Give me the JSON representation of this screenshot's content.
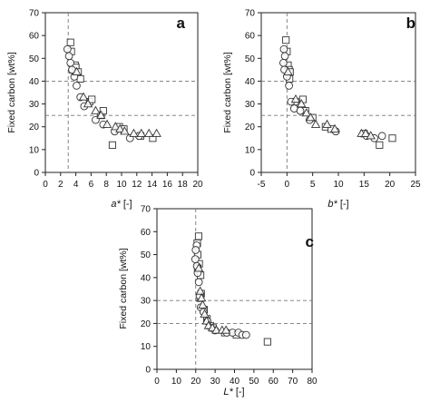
{
  "chart_data": [
    {
      "type": "scatter",
      "panel_label": "a",
      "xlabel_main": "a*",
      "xlabel_unit": " [-]",
      "ylabel": "Fixed carbon [wt%]",
      "xlim": [
        0,
        20
      ],
      "ylim": [
        0,
        70
      ],
      "xticks": [
        0,
        2,
        4,
        6,
        8,
        10,
        12,
        14,
        16,
        18,
        20
      ],
      "yticks": [
        0,
        10,
        20,
        30,
        40,
        50,
        60,
        70
      ],
      "vlines": [
        3
      ],
      "hlines": [
        25,
        40
      ],
      "series": [
        {
          "marker": "square",
          "points": [
            [
              3.3,
              57
            ],
            [
              3.4,
              53
            ],
            [
              3.6,
              45
            ],
            [
              3.9,
              47
            ],
            [
              4,
              46
            ],
            [
              4.3,
              44
            ],
            [
              4.6,
              41
            ],
            [
              5.8,
              31
            ],
            [
              6.1,
              32
            ],
            [
              7.3,
              25
            ],
            [
              7.6,
              27
            ],
            [
              8.8,
              12
            ],
            [
              9.7,
              20
            ],
            [
              10.3,
              19
            ],
            [
              12.5,
              16
            ],
            [
              14.1,
              15
            ]
          ]
        },
        {
          "marker": "circle",
          "points": [
            [
              2.9,
              54
            ],
            [
              3.1,
              51
            ],
            [
              3.3,
              48
            ],
            [
              3.5,
              45
            ],
            [
              3.8,
              42
            ],
            [
              4.1,
              38
            ],
            [
              4.6,
              33
            ],
            [
              5.1,
              29
            ],
            [
              6.6,
              23
            ],
            [
              7.6,
              21
            ],
            [
              9.1,
              18
            ],
            [
              11.1,
              15
            ],
            [
              12.3,
              16
            ]
          ]
        },
        {
          "marker": "triangle",
          "points": [
            [
              4.1,
              44
            ],
            [
              5,
              33
            ],
            [
              5.6,
              30
            ],
            [
              6.6,
              27
            ],
            [
              7.3,
              25
            ],
            [
              8.1,
              21
            ],
            [
              9.2,
              20
            ],
            [
              9.8,
              19
            ],
            [
              10.4,
              18
            ],
            [
              11.6,
              17
            ],
            [
              12.6,
              17
            ],
            [
              13.6,
              17
            ],
            [
              14.6,
              17
            ]
          ]
        }
      ]
    },
    {
      "type": "scatter",
      "panel_label": "b",
      "xlabel_main": "b*",
      "xlabel_unit": " [-]",
      "ylabel": "Fixed carbon [wt%]",
      "xlim": [
        -5,
        25
      ],
      "ylim": [
        0,
        70
      ],
      "xticks": [
        -5,
        0,
        5,
        10,
        15,
        20,
        25
      ],
      "yticks": [
        0,
        10,
        20,
        30,
        40,
        50,
        60,
        70
      ],
      "vlines": [
        0
      ],
      "hlines": [
        25,
        40
      ],
      "series": [
        {
          "marker": "square",
          "points": [
            [
              -0.2,
              58
            ],
            [
              0,
              53
            ],
            [
              0.2,
              47
            ],
            [
              0.4,
              45
            ],
            [
              0.6,
              44
            ],
            [
              0.5,
              41
            ],
            [
              1.6,
              31
            ],
            [
              3.1,
              32
            ],
            [
              3.6,
              27
            ],
            [
              5,
              24
            ],
            [
              7.5,
              20
            ],
            [
              8.6,
              19
            ],
            [
              15,
              17
            ],
            [
              18,
              12
            ],
            [
              20.5,
              15
            ]
          ]
        },
        {
          "marker": "circle",
          "points": [
            [
              -0.6,
              54
            ],
            [
              -0.4,
              51
            ],
            [
              -0.7,
              48
            ],
            [
              -0.5,
              45
            ],
            [
              0,
              42
            ],
            [
              0.4,
              38
            ],
            [
              0.8,
              31
            ],
            [
              1.4,
              28
            ],
            [
              2.6,
              27
            ],
            [
              4.4,
              23
            ],
            [
              9.5,
              18
            ],
            [
              15.5,
              16
            ],
            [
              17,
              15
            ],
            [
              18.5,
              16
            ]
          ]
        },
        {
          "marker": "triangle",
          "points": [
            [
              0.2,
              44
            ],
            [
              1.7,
              32
            ],
            [
              2.8,
              30
            ],
            [
              3.8,
              26
            ],
            [
              4.6,
              24
            ],
            [
              5.6,
              21
            ],
            [
              7.8,
              21
            ],
            [
              9.3,
              19
            ],
            [
              14.5,
              17
            ],
            [
              15.3,
              17
            ],
            [
              16.3,
              16
            ]
          ]
        }
      ]
    },
    {
      "type": "scatter",
      "panel_label": "c",
      "xlabel_main": "L*",
      "xlabel_unit": " [-]",
      "ylabel": "Fixed carbon [wt%]",
      "xlim": [
        0,
        80
      ],
      "ylim": [
        0,
        70
      ],
      "xticks": [
        0,
        10,
        20,
        30,
        40,
        50,
        60,
        70,
        80
      ],
      "yticks": [
        0,
        10,
        20,
        30,
        40,
        50,
        60,
        70
      ],
      "vlines": [
        20
      ],
      "hlines": [
        20,
        30
      ],
      "series": [
        {
          "marker": "square",
          "points": [
            [
              21.5,
              58
            ],
            [
              20.8,
              55
            ],
            [
              21,
              50
            ],
            [
              21.8,
              46
            ],
            [
              21,
              44
            ],
            [
              22.5,
              41
            ],
            [
              22.8,
              33
            ],
            [
              22.3,
              31
            ],
            [
              24.3,
              26
            ],
            [
              25.8,
              22
            ],
            [
              27.5,
              19
            ],
            [
              29,
              18
            ],
            [
              35,
              16
            ],
            [
              41,
              15
            ],
            [
              57,
              12
            ]
          ]
        },
        {
          "marker": "circle",
          "points": [
            [
              20.5,
              54
            ],
            [
              20,
              52
            ],
            [
              19.8,
              48
            ],
            [
              20.6,
              45
            ],
            [
              21,
              42
            ],
            [
              21.6,
              38
            ],
            [
              22,
              32
            ],
            [
              22.6,
              27
            ],
            [
              24,
              25
            ],
            [
              26,
              21
            ],
            [
              30,
              17
            ],
            [
              36,
              16
            ],
            [
              39,
              16
            ],
            [
              42,
              16
            ],
            [
              44,
              15
            ],
            [
              46,
              15
            ]
          ]
        },
        {
          "marker": "triangle",
          "points": [
            [
              21.6,
              44
            ],
            [
              22.3,
              34
            ],
            [
              23,
              31
            ],
            [
              23.6,
              28
            ],
            [
              24.6,
              24
            ],
            [
              25.6,
              21
            ],
            [
              26.6,
              19
            ],
            [
              28.6,
              18
            ],
            [
              30.6,
              17
            ],
            [
              33.6,
              17
            ],
            [
              35.6,
              17
            ]
          ]
        }
      ]
    }
  ]
}
